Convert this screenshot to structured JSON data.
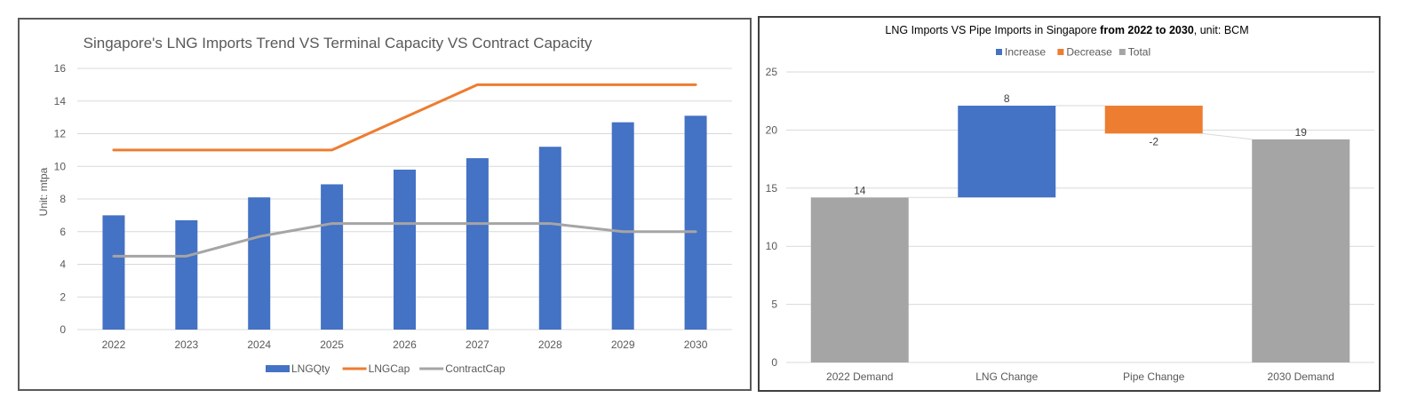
{
  "chart_data": [
    {
      "type": "bar",
      "title": "Singapore's LNG Imports Trend VS Terminal Capacity VS Contract Capacity",
      "xlabel": "",
      "ylabel": "Unit: mtpa",
      "ylim": [
        0,
        16
      ],
      "yticks": [
        "0",
        "2",
        "4",
        "6",
        "8",
        "10",
        "12",
        "14",
        "16"
      ],
      "ytick_values": [
        0,
        2,
        4,
        6,
        8,
        10,
        12,
        14,
        16
      ],
      "categories": [
        "2022",
        "2023",
        "2024",
        "2025",
        "2026",
        "2027",
        "2028",
        "2029",
        "2030"
      ],
      "grid": true,
      "legend_position": "bottom",
      "series": [
        {
          "name": "LNGQty",
          "kind": "bar",
          "color": "#4472C4",
          "values": [
            7.0,
            6.7,
            8.1,
            8.9,
            9.8,
            10.5,
            11.2,
            12.7,
            13.1
          ]
        },
        {
          "name": "LNGCap",
          "kind": "line",
          "color": "#ED7D31",
          "values": [
            11,
            11,
            11,
            11,
            13,
            15,
            15,
            15,
            15
          ]
        },
        {
          "name": "ContractCap",
          "kind": "line",
          "color": "#A5A5A5",
          "values": [
            4.5,
            4.5,
            5.7,
            6.5,
            6.5,
            6.5,
            6.5,
            6.0,
            6.0
          ]
        }
      ]
    },
    {
      "type": "waterfall",
      "title_parts": [
        {
          "text": "LNG Imports VS Pipe Imports in Singapore ",
          "bold": false
        },
        {
          "text": "from 2022 to 2030",
          "bold": true
        },
        {
          "text": ", unit: BCM",
          "bold": false
        }
      ],
      "title": "LNG Imports VS Pipe Imports in Singapore from 2022 to 2030, unit: BCM",
      "xlabel": "",
      "ylabel": "",
      "ylim": [
        0,
        25
      ],
      "yticks": [
        "0",
        "5",
        "10",
        "15",
        "20",
        "25"
      ],
      "ytick_values": [
        0,
        5,
        10,
        15,
        20,
        25
      ],
      "grid": true,
      "legend_position": "top",
      "legend": [
        {
          "name": "Increase",
          "color": "#4472C4"
        },
        {
          "name": "Decrease",
          "color": "#ED7D31"
        },
        {
          "name": "Total",
          "color": "#A5A5A5"
        }
      ],
      "categories": [
        "2022 Demand",
        "LNG Change",
        "Pipe Change",
        "2030 Demand"
      ],
      "points": [
        {
          "category": "2022 Demand",
          "kind": "total",
          "value": 14.2,
          "label": "14"
        },
        {
          "category": "LNG Change",
          "kind": "increase",
          "value": 7.9,
          "label": "8"
        },
        {
          "category": "Pipe Change",
          "kind": "decrease",
          "value": -2.4,
          "label": "-2"
        },
        {
          "category": "2030 Demand",
          "kind": "total",
          "value": 19.2,
          "label": "19"
        }
      ]
    }
  ]
}
